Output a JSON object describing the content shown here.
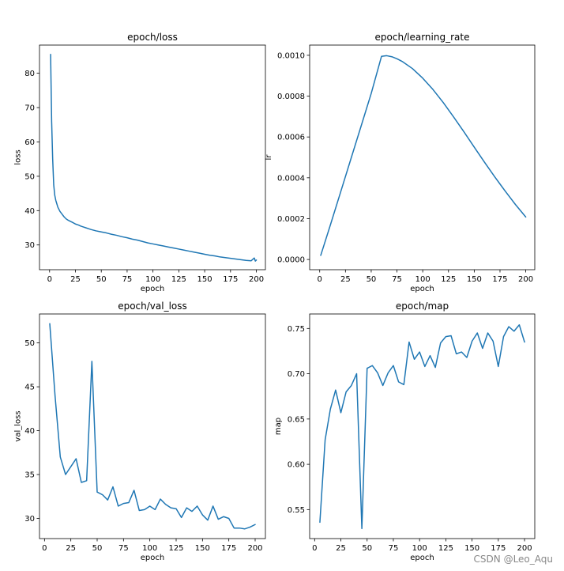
{
  "watermark": "CSDN @Leo_Aqu",
  "colors": {
    "line": "#1f77b4",
    "axes": "#000000"
  },
  "chart_data": [
    {
      "type": "line",
      "title": "epoch/loss",
      "xlabel": "epoch",
      "ylabel": "loss",
      "xlim": [
        -9.75,
        208.75
      ],
      "ylim": [
        22.8,
        88.2
      ],
      "xticks": [
        0,
        25,
        50,
        75,
        100,
        125,
        150,
        175,
        200
      ],
      "xtick_labels": [
        "0",
        "25",
        "50",
        "75",
        "100",
        "125",
        "150",
        "175",
        "200"
      ],
      "yticks": [
        30,
        40,
        50,
        60,
        70,
        80
      ],
      "ytick_labels": [
        "30",
        "40",
        "50",
        "60",
        "70",
        "80"
      ],
      "x": [
        1,
        2,
        3,
        4,
        5,
        6,
        7,
        8,
        10,
        12,
        14,
        16,
        18,
        20,
        22,
        25,
        28,
        30,
        32,
        35,
        38,
        40,
        45,
        50,
        55,
        60,
        65,
        70,
        75,
        80,
        85,
        90,
        95,
        100,
        105,
        110,
        115,
        120,
        125,
        130,
        135,
        140,
        145,
        150,
        155,
        160,
        165,
        170,
        175,
        180,
        185,
        190,
        195,
        198,
        199,
        200
      ],
      "y": [
        85.5,
        66,
        55,
        47.5,
        44.5,
        43,
        42,
        41,
        39.8,
        39,
        38.2,
        37.6,
        37.2,
        36.9,
        36.6,
        36.1,
        35.8,
        35.5,
        35.3,
        35,
        34.7,
        34.5,
        34.1,
        33.8,
        33.5,
        33.1,
        32.8,
        32.4,
        32.1,
        31.7,
        31.4,
        31,
        30.6,
        30.3,
        30,
        29.7,
        29.4,
        29.1,
        28.8,
        28.5,
        28.2,
        27.9,
        27.6,
        27.3,
        27,
        26.8,
        26.5,
        26.3,
        26.1,
        25.9,
        25.7,
        25.5,
        25.4,
        26.2,
        25.3,
        25.6
      ],
      "series_name": "loss"
    },
    {
      "type": "line",
      "title": "epoch/learning_rate",
      "xlabel": "epoch",
      "ylabel": "lr",
      "xlim": [
        -9.75,
        208.75
      ],
      "ylim": [
        -5e-05,
        0.00105
      ],
      "xticks": [
        0,
        25,
        50,
        75,
        100,
        125,
        150,
        175,
        200
      ],
      "xtick_labels": [
        "0",
        "25",
        "50",
        "75",
        "100",
        "125",
        "150",
        "175",
        "200"
      ],
      "yticks": [
        0.0,
        0.0002,
        0.0004,
        0.0006,
        0.0008,
        0.001
      ],
      "ytick_labels": [
        "0.0000",
        "0.0002",
        "0.0004",
        "0.0006",
        "0.0008",
        "0.0010"
      ],
      "x": [
        1,
        10,
        20,
        30,
        40,
        50,
        60,
        65,
        70,
        75,
        80,
        90,
        100,
        110,
        120,
        130,
        140,
        150,
        160,
        170,
        180,
        190,
        200
      ],
      "y": [
        2e-05,
        0.000163,
        0.000325,
        0.000488,
        0.00065,
        0.000813,
        0.000995,
        0.000998,
        0.000993,
        0.000983,
        0.00097,
        0.000935,
        0.000888,
        0.000832,
        0.000768,
        0.000698,
        0.000625,
        0.00055,
        0.000476,
        0.000404,
        0.000335,
        0.000269,
        0.000208
      ],
      "series_name": "lr"
    },
    {
      "type": "line",
      "title": "epoch/val_loss",
      "xlabel": "epoch",
      "ylabel": "val_loss",
      "xlim": [
        -4.75,
        209.75
      ],
      "ylim": [
        27.7,
        53.3
      ],
      "xticks": [
        0,
        25,
        50,
        75,
        100,
        125,
        150,
        175,
        200
      ],
      "xtick_labels": [
        "0",
        "25",
        "50",
        "75",
        "100",
        "125",
        "150",
        "175",
        "200"
      ],
      "yticks": [
        30,
        35,
        40,
        45,
        50
      ],
      "ytick_labels": [
        "30",
        "35",
        "40",
        "45",
        "50"
      ],
      "x": [
        5,
        10,
        15,
        20,
        25,
        30,
        35,
        40,
        45,
        50,
        55,
        60,
        65,
        70,
        75,
        80,
        85,
        90,
        95,
        100,
        105,
        110,
        115,
        120,
        125,
        130,
        135,
        140,
        145,
        150,
        155,
        160,
        165,
        170,
        175,
        180,
        185,
        190,
        195,
        200
      ],
      "y": [
        52.2,
        44,
        37,
        35,
        35.9,
        36.8,
        34.1,
        34.3,
        47.9,
        33,
        32.7,
        32.1,
        33.6,
        31.4,
        31.7,
        31.8,
        33.2,
        30.9,
        31,
        31.4,
        31,
        32.2,
        31.6,
        31.2,
        31.1,
        30.1,
        31.2,
        30.8,
        31.4,
        30.4,
        29.8,
        31.4,
        29.9,
        30.2,
        30,
        28.9,
        28.9,
        28.8,
        29,
        29.3
      ],
      "series_name": "val_loss"
    },
    {
      "type": "line",
      "title": "epoch/map",
      "xlabel": "epoch",
      "ylabel": "map",
      "xlim": [
        -4.75,
        209.75
      ],
      "ylim": [
        0.518,
        0.766
      ],
      "xticks": [
        0,
        25,
        50,
        75,
        100,
        125,
        150,
        175,
        200
      ],
      "xtick_labels": [
        "0",
        "25",
        "50",
        "75",
        "100",
        "125",
        "150",
        "175",
        "200"
      ],
      "yticks": [
        0.55,
        0.6,
        0.65,
        0.7,
        0.75
      ],
      "ytick_labels": [
        "0.55",
        "0.60",
        "0.65",
        "0.70",
        "0.75"
      ],
      "x": [
        5,
        10,
        15,
        20,
        25,
        30,
        35,
        40,
        45,
        50,
        55,
        60,
        65,
        70,
        75,
        80,
        85,
        90,
        95,
        100,
        105,
        110,
        115,
        120,
        125,
        130,
        135,
        140,
        145,
        150,
        155,
        160,
        165,
        170,
        175,
        180,
        185,
        190,
        195,
        200
      ],
      "y": [
        0.536,
        0.627,
        0.661,
        0.682,
        0.657,
        0.68,
        0.687,
        0.7,
        0.529,
        0.706,
        0.709,
        0.701,
        0.687,
        0.701,
        0.709,
        0.691,
        0.688,
        0.735,
        0.716,
        0.724,
        0.708,
        0.72,
        0.707,
        0.734,
        0.741,
        0.742,
        0.722,
        0.724,
        0.718,
        0.736,
        0.745,
        0.728,
        0.745,
        0.736,
        0.708,
        0.741,
        0.752,
        0.747,
        0.754,
        0.735
      ],
      "series_name": "map"
    }
  ]
}
